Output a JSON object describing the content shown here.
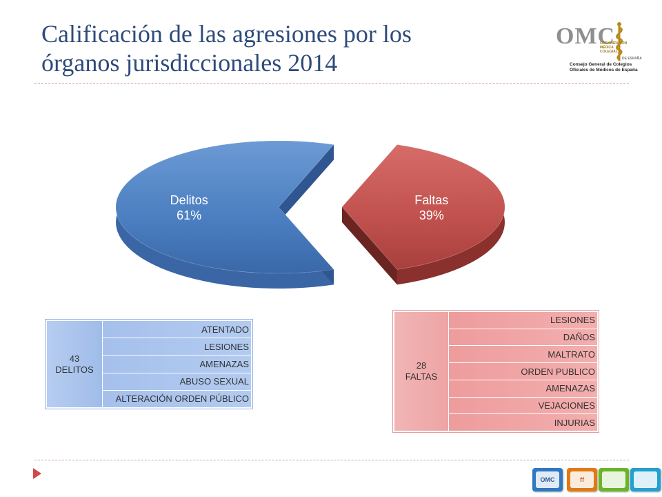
{
  "slide": {
    "title_line1": "Calificación de las agresiones por los",
    "title_line2": "órganos jurisdiccionales 2014"
  },
  "logo": {
    "acronym": "OMC",
    "org_lines": [
      "ORGANIZACIÓN",
      "MÉDICA",
      "COLEGIAL"
    ],
    "country": "DE ESPAÑA",
    "sub_line1": "Consejo General de Colegios",
    "sub_line2": "Oficiales de Médicos de España"
  },
  "chart_data": {
    "type": "pie",
    "style": "3d-exploded",
    "slices": [
      {
        "label": "Delitos",
        "value": 61,
        "value_label": "61%",
        "color": "#4a7ec0"
      },
      {
        "label": "Faltas",
        "value": 39,
        "value_label": "39%",
        "color": "#c0504d"
      }
    ]
  },
  "delitos_box": {
    "count": "43",
    "label": "DELITOS",
    "items": [
      "ATENTADO",
      "LESIONES",
      "AMENAZAS",
      "ABUSO SEXUAL",
      "ALTERACIÓN ORDEN PÚBLICO"
    ]
  },
  "faltas_box": {
    "count": "28",
    "label": "FALTAS",
    "items": [
      "LESIONES",
      "DAÑOS",
      "MALTRATO",
      "ORDEN PUBLICO",
      "AMENAZAS",
      "VEJACIONES",
      "INJURIAS"
    ]
  },
  "footer_icons": [
    {
      "name": "omc-icon",
      "text": "OMC",
      "color": "#2f78c4",
      "text_color": "#2f5a9a"
    },
    {
      "name": "ffomc-icon",
      "text": "ff",
      "color": "#e07a14",
      "text_color": "#d0601a"
    },
    {
      "name": "green-icon",
      "text": "",
      "color": "#6ab42a",
      "text_color": "#4a8a1a"
    },
    {
      "name": "globe-icon",
      "text": "",
      "color": "#22a0d0",
      "text_color": "#1a70a0"
    }
  ]
}
